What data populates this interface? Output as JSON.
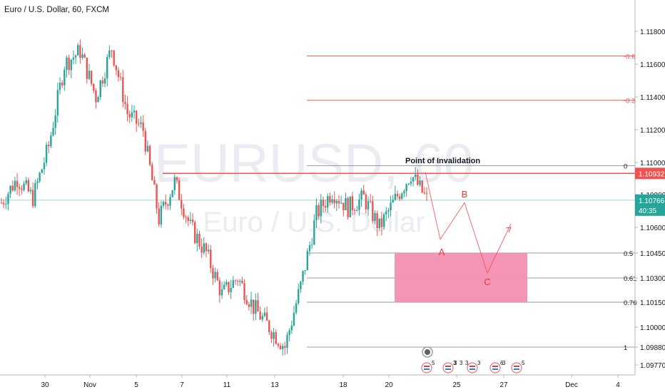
{
  "header": {
    "symbol_title": "Euro / U.S. Dollar, 60, FXCM"
  },
  "watermark": {
    "ticker": "EURUSD, 60",
    "name": "Euro / U.S. Dollar"
  },
  "colors": {
    "up": "#26a69a",
    "down": "#ef5350",
    "fib_line": "#ef5350",
    "zone": "#f48fb1",
    "price_tag": "#ef5350",
    "last_tag": "#26a69a",
    "invalidation_line": "#ef5350"
  },
  "chart_data": {
    "type": "candlestick",
    "title": "Euro / U.S. Dollar, 60, FXCM",
    "y_ticks": [
      "1.11800",
      "1.11600",
      "1.11400",
      "1.11200",
      "1.11000",
      "1.10800",
      "1.10600",
      "1.10450",
      "1.10300",
      "1.10150",
      "1.10000",
      "1.09880",
      "1.09770"
    ],
    "x_ticks": [
      "30",
      "Nov",
      "5",
      "7",
      "11",
      "13",
      "18",
      "20",
      "25",
      "27",
      "Dec",
      "4"
    ],
    "ylim": [
      1.097,
      1.1195
    ],
    "price_path": [
      {
        "x": "Oct 28",
        "y": 1.1075
      },
      {
        "x": "Oct 29",
        "y": 1.109
      },
      {
        "x": "Oct 29b",
        "y": 1.1078
      },
      {
        "x": "Oct 30",
        "y": 1.111
      },
      {
        "x": "Oct 31",
        "y": 1.116
      },
      {
        "x": "Nov 1",
        "y": 1.1168
      },
      {
        "x": "Nov 1b",
        "y": 1.114
      },
      {
        "x": "Nov 4",
        "y": 1.117
      },
      {
        "x": "Nov 4b",
        "y": 1.113
      },
      {
        "x": "Nov 5",
        "y": 1.112
      },
      {
        "x": "Nov 6",
        "y": 1.1065
      },
      {
        "x": "Nov 6b",
        "y": 1.1088
      },
      {
        "x": "Nov 7",
        "y": 1.106
      },
      {
        "x": "Nov 8",
        "y": 1.1045
      },
      {
        "x": "Nov 11",
        "y": 1.102
      },
      {
        "x": "Nov 12",
        "y": 1.103
      },
      {
        "x": "Nov 13",
        "y": 1.1012
      },
      {
        "x": "Nov 14",
        "y": 1.1
      },
      {
        "x": "Nov 14b",
        "y": 1.0988
      },
      {
        "x": "Nov 15",
        "y": 1.1025
      },
      {
        "x": "Nov 18",
        "y": 1.1068
      },
      {
        "x": "Nov 18b",
        "y": 1.1082
      },
      {
        "x": "Nov 19",
        "y": 1.1072
      },
      {
        "x": "Nov 20",
        "y": 1.1078
      },
      {
        "x": "Nov 20b",
        "y": 1.106
      },
      {
        "x": "Nov 21",
        "y": 1.1077
      },
      {
        "x": "Nov 22",
        "y": 1.1093
      },
      {
        "x": "Nov 22b",
        "y": 1.1077
      }
    ],
    "fib_levels": [
      {
        "label": "-0.6",
        "price": 1.1165
      },
      {
        "label": "-0.3",
        "price": 1.1138
      },
      {
        "label": "0",
        "price": 1.1098
      },
      {
        "label": "0.5",
        "price": 1.1045
      },
      {
        "label": "0.61",
        "price": 1.103
      },
      {
        "label": "0.76",
        "price": 1.1015
      },
      {
        "label": "1",
        "price": 1.0988
      }
    ],
    "price_tags": [
      {
        "label": "1.10932",
        "price": 1.10932,
        "kind": "invalidation"
      },
      {
        "label": "1.10766",
        "price": 1.10766,
        "kind": "last"
      },
      {
        "label": "40:35",
        "price": 1.1071,
        "kind": "countdown"
      }
    ],
    "annotation": "Point of Invalidation",
    "wave_labels": [
      "A",
      "B",
      "C"
    ],
    "event_counts": [
      "5",
      "3",
      "3",
      "3",
      "3",
      "6",
      "3",
      "5"
    ]
  }
}
